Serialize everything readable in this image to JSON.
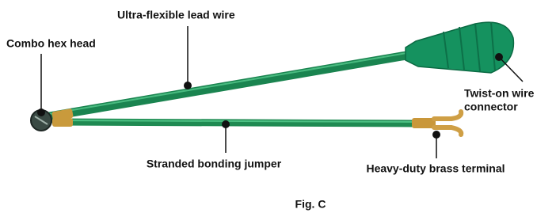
{
  "callouts": {
    "hex_head": "Combo hex head",
    "lead_wire": "Ultra-flexible lead wire",
    "connector": [
      "Twist-on wire",
      "connector"
    ],
    "jumper": "Stranded bonding jumper",
    "terminal": "Heavy-duty brass terminal"
  },
  "caption": "Fig. C"
}
